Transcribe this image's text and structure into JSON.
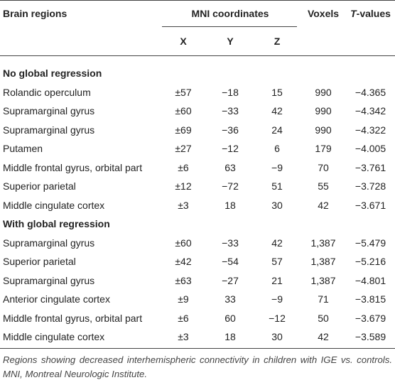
{
  "header": {
    "region": "Brain regions",
    "mni": "MNI coordinates",
    "voxels": "Voxels",
    "t_values": {
      "italic": "T",
      "rest": "-values"
    },
    "axes": [
      "X",
      "Y",
      "Z"
    ]
  },
  "sections": [
    {
      "title": "No global regression",
      "rows": [
        [
          "Rolandic operculum",
          "±57",
          "−18",
          "15",
          "990",
          "−4.365"
        ],
        [
          "Supramarginal gyrus",
          "±60",
          "−33",
          "42",
          "990",
          "−4.342"
        ],
        [
          "Supramarginal gyrus",
          "±69",
          "−36",
          "24",
          "990",
          "−4.322"
        ],
        [
          "Putamen",
          "±27",
          "−12",
          "6",
          "179",
          "−4.005"
        ],
        [
          "Middle frontal gyrus, orbital part",
          "±6",
          "63",
          "−9",
          "70",
          "−3.761"
        ],
        [
          "Superior parietal",
          "±12",
          "−72",
          "51",
          "55",
          "−3.728"
        ],
        [
          "Middle cingulate cortex",
          "±3",
          "18",
          "30",
          "42",
          "−3.671"
        ]
      ]
    },
    {
      "title": "With global regression",
      "rows": [
        [
          "Supramarginal gyrus",
          "±60",
          "−33",
          "42",
          "1,387",
          "−5.479"
        ],
        [
          "Superior parietal",
          "±42",
          "−54",
          "57",
          "1,387",
          "−5.216"
        ],
        [
          "Supramarginal gyrus",
          "±63",
          "−27",
          "21",
          "1,387",
          "−4.801"
        ],
        [
          "Anterior cingulate cortex",
          "±9",
          "33",
          "−9",
          "71",
          "−3.815"
        ],
        [
          "Middle frontal gyrus, orbital part",
          "±6",
          "60",
          "−12",
          "50",
          "−3.679"
        ],
        [
          "Middle cingulate cortex",
          "±3",
          "18",
          "30",
          "42",
          "−3.589"
        ]
      ]
    }
  ],
  "caption": "Regions showing decreased interhemispheric connectivity in children with IGE vs. controls. MNI, Montreal Neurologic Institute."
}
